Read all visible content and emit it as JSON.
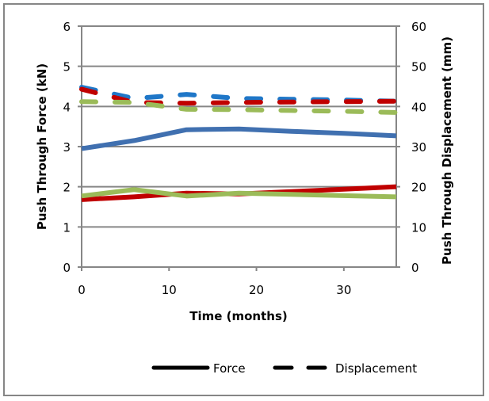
{
  "chart_data": {
    "type": "line",
    "title": "",
    "xlabel": "Time (months)",
    "ylabel": "Push Through Force (kN)",
    "y2label": "Push Through Displacement (mm)",
    "xlim": [
      0,
      36
    ],
    "ylim": [
      0,
      6
    ],
    "y2lim": [
      0,
      60
    ],
    "xticks": [
      "0",
      "10",
      "20",
      "30"
    ],
    "xtick_values": [
      0,
      10,
      20,
      30
    ],
    "yticks": [
      "0",
      "1",
      "2",
      "3",
      "4",
      "5",
      "6"
    ],
    "y2ticks": [
      "0",
      "10",
      "20",
      "30",
      "40",
      "50",
      "60"
    ],
    "grid": true,
    "legend": {
      "placement": "bottom",
      "entries": [
        {
          "label": "Force",
          "style": "solid"
        },
        {
          "label": "Displacement",
          "style": "dashed"
        }
      ]
    },
    "x": [
      0,
      6,
      12,
      18,
      24,
      30,
      36
    ],
    "series": [
      {
        "name": "Force (blue)",
        "axis": "left",
        "style": "solid",
        "color": "#4070B0",
        "values": [
          2.95,
          3.15,
          3.42,
          3.44,
          3.38,
          3.33,
          3.27
        ]
      },
      {
        "name": "Force (red)",
        "axis": "left",
        "style": "solid",
        "color": "#C00000",
        "values": [
          1.68,
          1.75,
          1.84,
          1.82,
          1.88,
          1.94,
          2.0
        ]
      },
      {
        "name": "Force (green)",
        "axis": "left",
        "style": "solid",
        "color": "#9BBB59",
        "values": [
          1.77,
          1.93,
          1.77,
          1.84,
          1.81,
          1.78,
          1.75
        ]
      },
      {
        "name": "Displacement (blue)",
        "axis": "right",
        "style": "dashed",
        "color": "#1F77C8",
        "values": [
          44.8,
          42.0,
          43.0,
          42.0,
          41.8,
          41.6,
          41.3
        ]
      },
      {
        "name": "Displacement (red)",
        "axis": "right",
        "style": "dashed",
        "color": "#C00000",
        "values": [
          44.3,
          41.0,
          40.8,
          41.0,
          41.1,
          41.2,
          41.3
        ]
      },
      {
        "name": "Displacement (green)",
        "axis": "right",
        "style": "dashed",
        "color": "#9BBB59",
        "values": [
          41.2,
          41.0,
          39.3,
          39.2,
          39.0,
          38.8,
          38.5
        ]
      }
    ]
  }
}
